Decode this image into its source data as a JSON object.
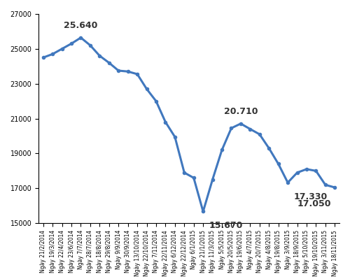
{
  "chart_data": {
    "type": "line",
    "categories": [
      "Ngày 21/2/2014",
      "Ngày 19/3/2014",
      "Ngày 22/4/2014",
      "Ngày 23/6/2014",
      "Ngày 7/7/2014",
      "Ngày 28/7/2014",
      "Ngày 18/8/2014",
      "Ngày 29/8/2014",
      "Ngày 9/9/2014",
      "Ngày 30/9/2014",
      "Ngày 13/10/2014",
      "Ngày 22/10/2014",
      "Ngày 7/11/2014",
      "Ngày 22/11/2014",
      "Ngày 6/12/2014",
      "Ngày 22/12/2014",
      "Ngày 6/1/2015",
      "Ngày 21/1/2015",
      "Ngày 11/3/2015",
      "Ngày 5/5/2015",
      "Ngày 20/5/2015",
      "Ngày 19/6/2015",
      "Ngày 4/7/2015",
      "Ngày 20/7/2015",
      "Ngày 4/8/2015",
      "Ngày 19/8/2015",
      "Ngày 3/9/2015",
      "Ngày 18/9/2015",
      "Ngày 5/10/2015",
      "Ngày 19/10/2015",
      "Ngày 3/11/2015",
      "Ngày 18/11/2015"
    ],
    "values": [
      24500,
      24700,
      25000,
      25300,
      25640,
      25200,
      24600,
      24200,
      23750,
      23700,
      23550,
      22700,
      22000,
      20800,
      19950,
      17900,
      17600,
      15670,
      17500,
      19200,
      20450,
      20710,
      20400,
      20100,
      19300,
      18400,
      17330,
      17900,
      18100,
      18000,
      17200,
      17050
    ],
    "value_labels": [
      null,
      null,
      null,
      null,
      "25.640",
      null,
      null,
      null,
      null,
      null,
      null,
      null,
      null,
      null,
      null,
      null,
      null,
      "15.670",
      null,
      null,
      null,
      "20.710",
      null,
      null,
      null,
      null,
      "17.330",
      null,
      null,
      null,
      null,
      "17.050"
    ],
    "data_labels": true,
    "color": "#4178be",
    "marker": "o",
    "ylim": [
      15000,
      27000
    ],
    "yticks": [
      15000,
      17000,
      19000,
      21000,
      23000,
      25000,
      27000
    ],
    "grid": false
  }
}
